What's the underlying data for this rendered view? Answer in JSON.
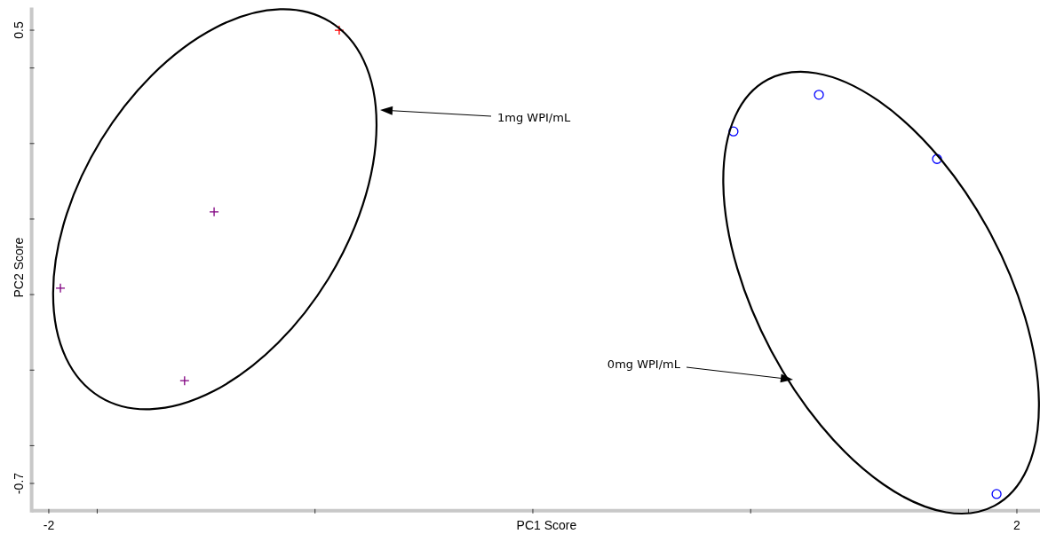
{
  "chart_data": {
    "type": "scatter",
    "xlabel": "PC1 Score",
    "ylabel": "PC2 Score",
    "xlim": [
      -2.06,
      2.1
    ],
    "ylim": [
      -0.77,
      0.56
    ],
    "xticks": [
      {
        "value": -2,
        "label": "-2"
      },
      {
        "value": -1.8,
        "label": null
      },
      {
        "value": -0.9,
        "label": null
      },
      {
        "value": 0,
        "label": null
      },
      {
        "value": 0.9,
        "label": null
      },
      {
        "value": 1.8,
        "label": null
      },
      {
        "value": 2,
        "label": "2"
      }
    ],
    "yticks": [
      {
        "value": 0.5,
        "label": "0.5"
      },
      {
        "value": 0.4,
        "label": null
      },
      {
        "value": 0.2,
        "label": null
      },
      {
        "value": 0,
        "label": null
      },
      {
        "value": -0.2,
        "label": null
      },
      {
        "value": -0.4,
        "label": null
      },
      {
        "value": -0.6,
        "label": null
      },
      {
        "value": -0.7,
        "label": "-0.7"
      }
    ],
    "grid": false,
    "series": [
      {
        "marker": "cross",
        "x": [
          -0.8,
          -1.317,
          -1.952,
          -1.439
        ],
        "values": [
          0.5,
          0.019,
          -0.183,
          -0.428
        ],
        "colors": [
          "#ff0000",
          "#800080",
          "#800080",
          "#800080"
        ]
      },
      {
        "marker": "circle",
        "color": "#0000ff",
        "x": [
          0.829,
          1.182,
          1.67,
          1.916
        ],
        "values": [
          0.232,
          0.329,
          0.159,
          -0.728
        ]
      }
    ],
    "annotations": [
      "1mg WPI/mL",
      "0mg WPI/mL"
    ]
  }
}
